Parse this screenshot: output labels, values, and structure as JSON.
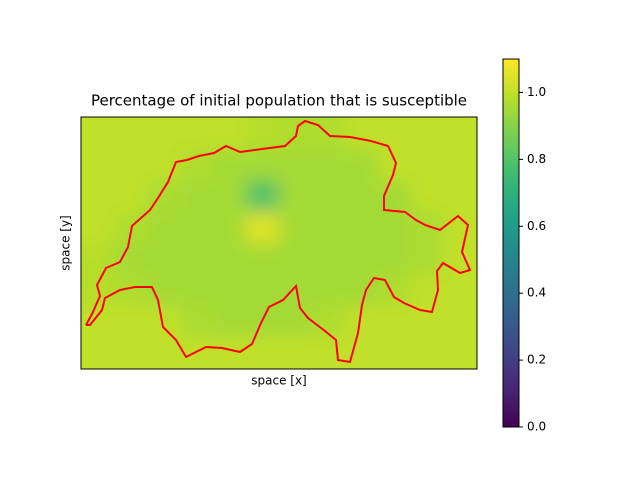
{
  "chart_data": {
    "type": "heatmap",
    "title": "Percentage of initial population that is susceptible",
    "xlabel": "space [x]",
    "ylabel": "space [y]",
    "colormap": "viridis",
    "zlim": [
      0,
      1.1
    ],
    "zticks": [
      {
        "value": 0,
        "label": "0.0"
      },
      {
        "value": 0.2,
        "label": "0.2"
      },
      {
        "value": 0.4,
        "label": "0.4"
      },
      {
        "value": 0.6,
        "label": "0.6"
      },
      {
        "value": 0.8,
        "label": "0.8"
      },
      {
        "value": 1.0,
        "label": "1.0"
      }
    ],
    "outline_color": "#ff0000",
    "z": [
      [
        1.0,
        1.0,
        1.0,
        1.0,
        1.0,
        0.98,
        0.97,
        0.97,
        1.0,
        1.0,
        1.0,
        1.0
      ],
      [
        1.0,
        1.0,
        1.0,
        0.97,
        0.95,
        0.95,
        0.95,
        0.95,
        0.95,
        1.0,
        1.0,
        1.0
      ],
      [
        1.0,
        1.0,
        0.96,
        0.95,
        0.95,
        0.8,
        0.95,
        0.95,
        0.95,
        0.95,
        1.0,
        1.0
      ],
      [
        1.0,
        0.97,
        0.95,
        0.95,
        0.95,
        1.05,
        0.95,
        0.95,
        0.95,
        0.95,
        0.96,
        1.0
      ],
      [
        0.98,
        0.95,
        0.95,
        0.95,
        0.95,
        0.95,
        0.95,
        0.95,
        0.95,
        0.95,
        0.96,
        1.0
      ],
      [
        0.98,
        0.97,
        0.95,
        0.95,
        0.95,
        0.95,
        0.95,
        0.95,
        0.95,
        0.97,
        1.0,
        1.0
      ],
      [
        1.0,
        1.0,
        1.0,
        0.96,
        0.95,
        0.95,
        0.95,
        0.97,
        1.0,
        1.0,
        1.0,
        1.0
      ],
      [
        1.0,
        1.0,
        1.0,
        1.0,
        1.0,
        1.0,
        1.0,
        1.0,
        1.0,
        1.0,
        1.0,
        1.0
      ]
    ]
  }
}
